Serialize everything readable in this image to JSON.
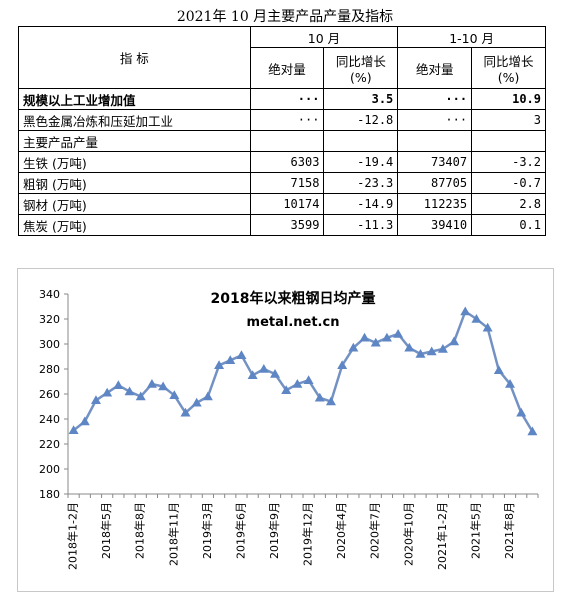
{
  "page_title": "2021年 10 月主要产品产量及指标",
  "table": {
    "header_indicator": "指 标",
    "period_oct": "10 月",
    "period_ytd": "1-10 月",
    "col_abs": "绝对量",
    "col_yoy_line1": "同比增长",
    "col_yoy_line2": "(%)",
    "rows": [
      {
        "name": "规模以上工业增加值",
        "oct_abs": "···",
        "oct_yoy": "3.5",
        "ytd_abs": "···",
        "ytd_yoy": "10.9"
      },
      {
        "name": "黑色金属冶炼和压延加工业",
        "oct_abs": "···",
        "oct_yoy": "-12.8",
        "ytd_abs": "···",
        "ytd_yoy": "3"
      },
      {
        "name": "主要产品产量",
        "oct_abs": "",
        "oct_yoy": "",
        "ytd_abs": "",
        "ytd_yoy": ""
      },
      {
        "name": "生铁 (万吨)",
        "oct_abs": "6303",
        "oct_yoy": "-19.4",
        "ytd_abs": "73407",
        "ytd_yoy": "-3.2"
      },
      {
        "name": "粗钢 (万吨)",
        "oct_abs": "7158",
        "oct_yoy": "-23.3",
        "ytd_abs": "87705",
        "ytd_yoy": "-0.7"
      },
      {
        "name": "钢材 (万吨)",
        "oct_abs": "10174",
        "oct_yoy": "-14.9",
        "ytd_abs": "112235",
        "ytd_yoy": "2.8"
      },
      {
        "name": "焦炭 (万吨)",
        "oct_abs": "3599",
        "oct_yoy": "-11.3",
        "ytd_abs": "39410",
        "ytd_yoy": "0.1"
      }
    ]
  },
  "chart_data": {
    "type": "line",
    "title": "2018年以来粗钢日均产量",
    "subtitle": "metal.net.cn",
    "ylim": [
      180,
      340
    ],
    "yticks": [
      180,
      200,
      220,
      240,
      260,
      280,
      300,
      320,
      340
    ],
    "x": [
      "2018年1-2月",
      "2018年3月",
      "2018年4月",
      "2018年5月",
      "2018年6月",
      "2018年7月",
      "2018年8月",
      "2018年9月",
      "2018年10月",
      "2018年11月",
      "2018年12月",
      "2019年1-2月",
      "2019年3月",
      "2019年4月",
      "2019年5月",
      "2019年6月",
      "2019年7月",
      "2019年8月",
      "2019年9月",
      "2019年10月",
      "2019年11月",
      "2019年12月",
      "2020年1-2月",
      "2020年3月",
      "2020年4月",
      "2020年5月",
      "2020年6月",
      "2020年7月",
      "2020年8月",
      "2020年9月",
      "2020年10月",
      "2020年11月",
      "2020年12月",
      "2021年1-2月",
      "2021年3月",
      "2021年4月",
      "2021年5月",
      "2021年6月",
      "2021年7月",
      "2021年8月",
      "2021年9月",
      "2021年10月"
    ],
    "xtick_labels": [
      "2018年1-2月",
      "2018年5月",
      "2018年8月",
      "2018年11月",
      "2019年3月",
      "2019年6月",
      "2019年9月",
      "2019年12月",
      "2020年4月",
      "2020年7月",
      "2020年10月",
      "2021年1-2月",
      "2021年5月",
      "2021年8月"
    ],
    "series": [
      {
        "values": [
          231,
          238,
          255,
          261,
          267,
          262,
          258,
          268,
          266,
          259,
          245,
          253,
          258,
          283,
          287,
          291,
          275,
          280,
          276,
          263,
          268,
          271,
          257,
          254,
          283,
          297,
          305,
          301,
          305,
          308,
          297,
          292,
          294,
          296,
          302,
          326,
          320,
          313,
          279,
          268,
          245,
          230
        ]
      }
    ],
    "color": "#5b7fb8",
    "marker_color": "#5f86c4",
    "grid": false
  }
}
